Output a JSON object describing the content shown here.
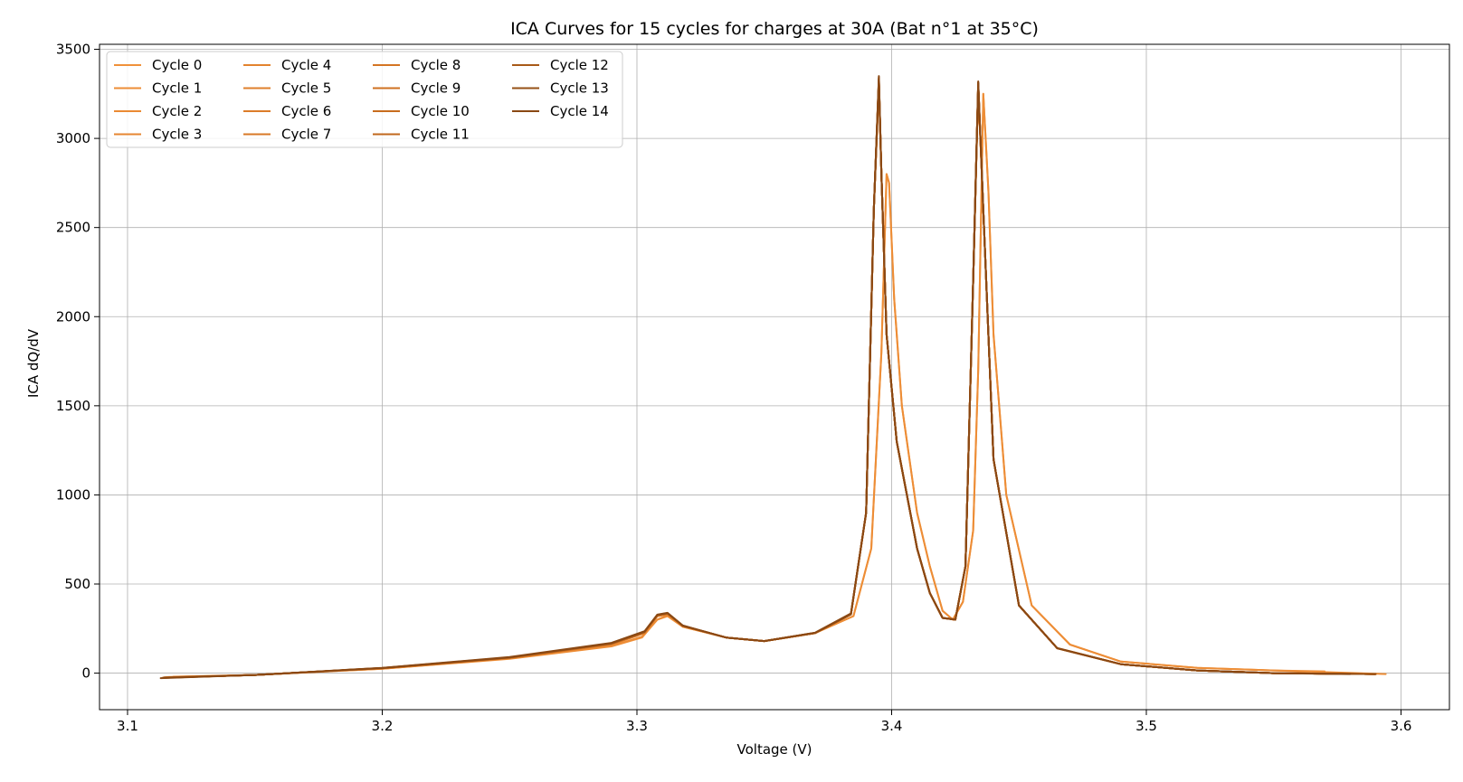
{
  "chart_data": {
    "type": "line",
    "title": "ICA Curves for 15 cycles for charges at 30A (Bat n°1 at 35°C)",
    "xlabel": "Voltage (V)",
    "ylabel": "ICA dQ/dV",
    "xlim": [
      3.089,
      3.619
    ],
    "ylim": [
      -205,
      3528
    ],
    "xticks": [
      3.1,
      3.2,
      3.3,
      3.4,
      3.5,
      3.6
    ],
    "xtick_labels": [
      "3.1",
      "3.2",
      "3.3",
      "3.4",
      "3.5",
      "3.6"
    ],
    "yticks": [
      0,
      500,
      1000,
      1500,
      2000,
      2500,
      3000,
      3500
    ],
    "ytick_labels": [
      "0",
      "500",
      "1000",
      "1500",
      "2000",
      "2500",
      "3000",
      "3500"
    ],
    "grid": true,
    "legend_position": "top-left",
    "legend_columns": 4,
    "series": [
      {
        "name": "Cycle 0",
        "color": "#f0913a",
        "x": [
          3.118,
          3.15,
          3.2,
          3.25,
          3.29,
          3.302,
          3.308,
          3.312,
          3.318,
          3.335,
          3.35,
          3.37,
          3.385,
          3.392,
          3.396,
          3.398,
          3.399,
          3.401,
          3.404,
          3.41,
          3.415,
          3.42,
          3.424,
          3.428,
          3.432,
          3.434,
          3.436,
          3.438,
          3.44,
          3.445,
          3.455,
          3.47,
          3.49,
          3.52,
          3.55,
          3.57
        ],
        "y": [
          -20,
          -10,
          25,
          80,
          150,
          200,
          300,
          320,
          260,
          200,
          180,
          225,
          320,
          700,
          1800,
          2800,
          2750,
          2100,
          1500,
          900,
          600,
          350,
          300,
          400,
          800,
          1700,
          3250,
          2700,
          1900,
          1000,
          380,
          160,
          65,
          30,
          15,
          10
        ]
      },
      {
        "name": "Cycle 1",
        "color": "#ed8d36",
        "x": [
          3.116,
          3.15,
          3.2,
          3.25,
          3.29,
          3.302,
          3.308,
          3.312,
          3.318,
          3.335,
          3.35,
          3.37,
          3.385,
          3.392,
          3.396,
          3.398,
          3.399,
          3.401,
          3.404,
          3.41,
          3.415,
          3.42,
          3.424,
          3.428,
          3.432,
          3.434,
          3.436,
          3.438,
          3.44,
          3.445,
          3.455,
          3.47,
          3.49,
          3.52,
          3.55,
          3.594
        ],
        "y": [
          -22,
          -10,
          25,
          82,
          152,
          205,
          300,
          325,
          260,
          200,
          180,
          225,
          320,
          700,
          1800,
          2800,
          2750,
          2100,
          1500,
          900,
          600,
          350,
          300,
          400,
          800,
          1700,
          3250,
          2700,
          1900,
          1000,
          380,
          160,
          65,
          30,
          15,
          -5
        ]
      },
      {
        "name": "Cycle 2",
        "color": "#ea8a33",
        "x": [
          3.114,
          3.15,
          3.2,
          3.25,
          3.29,
          3.303,
          3.308,
          3.312,
          3.318,
          3.335,
          3.35,
          3.37,
          3.384,
          3.39,
          3.393,
          3.395,
          3.396,
          3.398,
          3.402,
          3.41,
          3.415,
          3.42,
          3.425,
          3.429,
          3.432,
          3.434,
          3.436,
          3.44,
          3.45,
          3.465,
          3.49,
          3.52,
          3.55,
          3.59
        ],
        "y": [
          -25,
          -10,
          28,
          85,
          160,
          225,
          320,
          330,
          265,
          200,
          180,
          225,
          330,
          900,
          2600,
          3300,
          2800,
          1900,
          1300,
          700,
          450,
          310,
          300,
          600,
          2200,
          3280,
          2600,
          1200,
          380,
          140,
          50,
          15,
          0,
          -5
        ]
      },
      {
        "name": "Cycle 3",
        "color": "#e68631",
        "x": [
          3.114,
          3.15,
          3.2,
          3.25,
          3.29,
          3.303,
          3.308,
          3.312,
          3.318,
          3.335,
          3.35,
          3.37,
          3.384,
          3.39,
          3.393,
          3.395,
          3.396,
          3.398,
          3.402,
          3.41,
          3.415,
          3.42,
          3.425,
          3.429,
          3.432,
          3.434,
          3.436,
          3.44,
          3.45,
          3.465,
          3.49,
          3.52,
          3.55,
          3.59
        ],
        "y": [
          -25,
          -10,
          28,
          85,
          160,
          225,
          320,
          330,
          265,
          200,
          180,
          225,
          330,
          900,
          2600,
          3310,
          2800,
          1900,
          1300,
          700,
          450,
          310,
          300,
          600,
          2200,
          3290,
          2600,
          1200,
          380,
          140,
          50,
          15,
          0,
          -5
        ]
      },
      {
        "name": "Cycle 4",
        "color": "#e3832e",
        "x": [
          3.114,
          3.15,
          3.2,
          3.25,
          3.29,
          3.303,
          3.308,
          3.312,
          3.318,
          3.335,
          3.35,
          3.37,
          3.384,
          3.39,
          3.393,
          3.395,
          3.396,
          3.398,
          3.402,
          3.41,
          3.415,
          3.42,
          3.425,
          3.429,
          3.432,
          3.434,
          3.436,
          3.44,
          3.45,
          3.465,
          3.49,
          3.52,
          3.55,
          3.59
        ],
        "y": [
          -25,
          -10,
          28,
          85,
          162,
          226,
          320,
          330,
          265,
          200,
          180,
          225,
          330,
          900,
          2600,
          3315,
          2800,
          1900,
          1300,
          700,
          450,
          310,
          300,
          600,
          2200,
          3295,
          2600,
          1200,
          380,
          140,
          50,
          15,
          0,
          -5
        ]
      },
      {
        "name": "Cycle 5",
        "color": "#df7f2b",
        "x": [
          3.114,
          3.15,
          3.2,
          3.25,
          3.29,
          3.303,
          3.308,
          3.312,
          3.318,
          3.335,
          3.35,
          3.37,
          3.384,
          3.39,
          3.393,
          3.395,
          3.396,
          3.398,
          3.402,
          3.41,
          3.415,
          3.42,
          3.425,
          3.429,
          3.432,
          3.434,
          3.436,
          3.44,
          3.45,
          3.465,
          3.49,
          3.52,
          3.55,
          3.59
        ],
        "y": [
          -25,
          -10,
          28,
          85,
          162,
          226,
          322,
          332,
          265,
          200,
          180,
          225,
          330,
          900,
          2600,
          3320,
          2800,
          1900,
          1300,
          700,
          450,
          310,
          300,
          600,
          2200,
          3300,
          2600,
          1200,
          380,
          140,
          50,
          15,
          0,
          -5
        ]
      },
      {
        "name": "Cycle 6",
        "color": "#dc7c29",
        "x": [
          3.114,
          3.15,
          3.2,
          3.25,
          3.29,
          3.303,
          3.308,
          3.312,
          3.318,
          3.335,
          3.35,
          3.37,
          3.384,
          3.39,
          3.393,
          3.395,
          3.396,
          3.398,
          3.402,
          3.41,
          3.415,
          3.42,
          3.425,
          3.429,
          3.432,
          3.434,
          3.436,
          3.44,
          3.45,
          3.465,
          3.49,
          3.52,
          3.55,
          3.59
        ],
        "y": [
          -25,
          -10,
          28,
          85,
          163,
          227,
          322,
          332,
          265,
          200,
          180,
          225,
          330,
          900,
          2600,
          3320,
          2800,
          1900,
          1300,
          700,
          450,
          310,
          300,
          600,
          2200,
          3300,
          2600,
          1200,
          380,
          140,
          50,
          15,
          0,
          -5
        ]
      },
      {
        "name": "Cycle 7",
        "color": "#d87826",
        "x": [
          3.114,
          3.15,
          3.2,
          3.25,
          3.29,
          3.303,
          3.308,
          3.312,
          3.318,
          3.335,
          3.35,
          3.37,
          3.384,
          3.39,
          3.393,
          3.395,
          3.396,
          3.398,
          3.402,
          3.41,
          3.415,
          3.42,
          3.425,
          3.429,
          3.432,
          3.434,
          3.436,
          3.44,
          3.45,
          3.465,
          3.49,
          3.52,
          3.55,
          3.59
        ],
        "y": [
          -25,
          -10,
          28,
          86,
          164,
          228,
          323,
          333,
          265,
          200,
          180,
          225,
          330,
          900,
          2600,
          3325,
          2800,
          1900,
          1300,
          700,
          450,
          310,
          300,
          600,
          2200,
          3300,
          2600,
          1200,
          380,
          140,
          50,
          15,
          0,
          -5
        ]
      },
      {
        "name": "Cycle 8",
        "color": "#d47523",
        "x": [
          3.114,
          3.15,
          3.2,
          3.25,
          3.29,
          3.303,
          3.308,
          3.312,
          3.318,
          3.335,
          3.35,
          3.37,
          3.384,
          3.39,
          3.393,
          3.395,
          3.396,
          3.398,
          3.402,
          3.41,
          3.415,
          3.42,
          3.425,
          3.429,
          3.432,
          3.434,
          3.436,
          3.44,
          3.45,
          3.465,
          3.49,
          3.52,
          3.55,
          3.59
        ],
        "y": [
          -25,
          -10,
          28,
          86,
          164,
          228,
          323,
          333,
          265,
          200,
          180,
          225,
          330,
          900,
          2600,
          3325,
          2800,
          1900,
          1300,
          700,
          450,
          310,
          300,
          600,
          2200,
          3305,
          2600,
          1200,
          380,
          140,
          50,
          15,
          0,
          -5
        ]
      },
      {
        "name": "Cycle 9",
        "color": "#cf7120",
        "x": [
          3.114,
          3.15,
          3.2,
          3.25,
          3.29,
          3.303,
          3.308,
          3.312,
          3.318,
          3.335,
          3.35,
          3.37,
          3.384,
          3.39,
          3.393,
          3.395,
          3.396,
          3.398,
          3.402,
          3.41,
          3.415,
          3.42,
          3.425,
          3.429,
          3.432,
          3.434,
          3.436,
          3.44,
          3.45,
          3.465,
          3.49,
          3.52,
          3.55,
          3.59
        ],
        "y": [
          -25,
          -10,
          28,
          86,
          165,
          229,
          324,
          334,
          265,
          200,
          180,
          225,
          330,
          900,
          2600,
          3330,
          2800,
          1900,
          1300,
          700,
          450,
          310,
          300,
          600,
          2200,
          3305,
          2600,
          1200,
          380,
          140,
          50,
          15,
          0,
          -5
        ]
      },
      {
        "name": "Cycle 10",
        "color": "#c86c1e",
        "x": [
          3.114,
          3.15,
          3.2,
          3.25,
          3.29,
          3.303,
          3.308,
          3.312,
          3.318,
          3.335,
          3.35,
          3.37,
          3.384,
          3.39,
          3.393,
          3.395,
          3.396,
          3.398,
          3.402,
          3.41,
          3.415,
          3.42,
          3.425,
          3.429,
          3.432,
          3.434,
          3.436,
          3.44,
          3.45,
          3.465,
          3.49,
          3.52,
          3.55,
          3.59
        ],
        "y": [
          -25,
          -10,
          28,
          87,
          166,
          230,
          325,
          335,
          265,
          200,
          180,
          225,
          330,
          900,
          2600,
          3330,
          2800,
          1900,
          1300,
          700,
          450,
          310,
          300,
          600,
          2200,
          3310,
          2600,
          1200,
          380,
          140,
          50,
          15,
          0,
          -5
        ]
      },
      {
        "name": "Cycle 11",
        "color": "#c0671c",
        "x": [
          3.114,
          3.15,
          3.2,
          3.25,
          3.29,
          3.303,
          3.308,
          3.312,
          3.318,
          3.335,
          3.35,
          3.37,
          3.384,
          3.39,
          3.393,
          3.395,
          3.396,
          3.398,
          3.402,
          3.41,
          3.415,
          3.42,
          3.425,
          3.429,
          3.432,
          3.434,
          3.436,
          3.44,
          3.45,
          3.465,
          3.49,
          3.52,
          3.55,
          3.59
        ],
        "y": [
          -25,
          -10,
          28,
          87,
          166,
          230,
          325,
          335,
          265,
          200,
          180,
          225,
          330,
          900,
          2600,
          3335,
          2800,
          1900,
          1300,
          700,
          450,
          310,
          300,
          600,
          2200,
          3310,
          2600,
          1200,
          380,
          140,
          50,
          15,
          0,
          -5
        ]
      },
      {
        "name": "Cycle 12",
        "color": "#a85a18",
        "x": [
          3.114,
          3.15,
          3.2,
          3.25,
          3.29,
          3.303,
          3.308,
          3.312,
          3.318,
          3.335,
          3.35,
          3.37,
          3.384,
          3.39,
          3.393,
          3.395,
          3.396,
          3.398,
          3.402,
          3.41,
          3.415,
          3.42,
          3.425,
          3.429,
          3.432,
          3.434,
          3.436,
          3.44,
          3.45,
          3.465,
          3.49,
          3.52,
          3.55,
          3.59
        ],
        "y": [
          -26,
          -10,
          29,
          88,
          168,
          232,
          326,
          336,
          266,
          200,
          180,
          226,
          330,
          900,
          2600,
          3340,
          2800,
          1900,
          1300,
          700,
          450,
          310,
          300,
          600,
          2200,
          3315,
          2600,
          1200,
          380,
          140,
          50,
          15,
          0,
          -5
        ]
      },
      {
        "name": "Cycle 13",
        "color": "#965016",
        "x": [
          3.114,
          3.15,
          3.2,
          3.25,
          3.29,
          3.303,
          3.308,
          3.312,
          3.318,
          3.335,
          3.35,
          3.37,
          3.384,
          3.39,
          3.393,
          3.395,
          3.396,
          3.398,
          3.402,
          3.41,
          3.415,
          3.42,
          3.425,
          3.429,
          3.432,
          3.434,
          3.436,
          3.44,
          3.45,
          3.465,
          3.49,
          3.52,
          3.55,
          3.59
        ],
        "y": [
          -26,
          -10,
          29,
          88,
          168,
          232,
          327,
          337,
          266,
          200,
          180,
          226,
          330,
          900,
          2600,
          3345,
          2800,
          1900,
          1300,
          700,
          450,
          310,
          300,
          600,
          2200,
          3315,
          2600,
          1200,
          380,
          140,
          50,
          15,
          0,
          -5
        ]
      },
      {
        "name": "Cycle 14",
        "color": "#8a4813",
        "x": [
          3.113,
          3.15,
          3.2,
          3.25,
          3.29,
          3.303,
          3.308,
          3.312,
          3.318,
          3.335,
          3.35,
          3.37,
          3.384,
          3.39,
          3.393,
          3.395,
          3.396,
          3.398,
          3.402,
          3.41,
          3.415,
          3.42,
          3.425,
          3.429,
          3.432,
          3.434,
          3.436,
          3.44,
          3.45,
          3.465,
          3.49,
          3.52,
          3.55,
          3.58
        ],
        "y": [
          -28,
          -10,
          30,
          90,
          170,
          235,
          328,
          338,
          267,
          200,
          180,
          227,
          335,
          900,
          2600,
          3350,
          2800,
          1900,
          1300,
          700,
          450,
          310,
          300,
          600,
          2200,
          3320,
          2600,
          1200,
          380,
          140,
          50,
          15,
          0,
          -5
        ]
      }
    ]
  }
}
